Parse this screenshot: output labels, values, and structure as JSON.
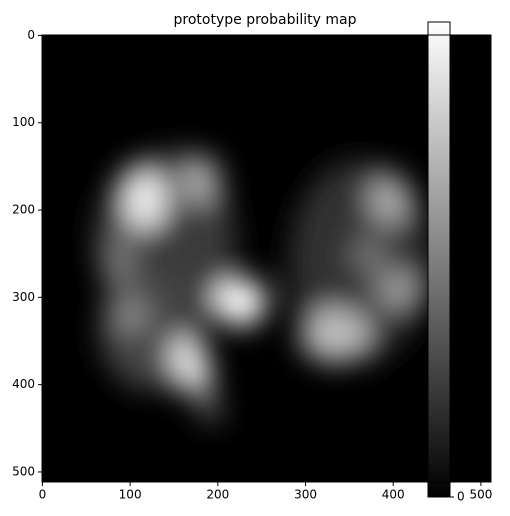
{
  "chart_data": {
    "type": "heatmap",
    "title": "prototype probability map",
    "xlim": [
      -0.5,
      511.5
    ],
    "ylim": [
      511.5,
      -0.5
    ],
    "xticks": [
      0,
      100,
      200,
      300,
      400,
      500
    ],
    "yticks": [
      0,
      100,
      200,
      300,
      400,
      500
    ],
    "colormap": "gray",
    "colorbar_ticks": [
      0
    ]
  }
}
